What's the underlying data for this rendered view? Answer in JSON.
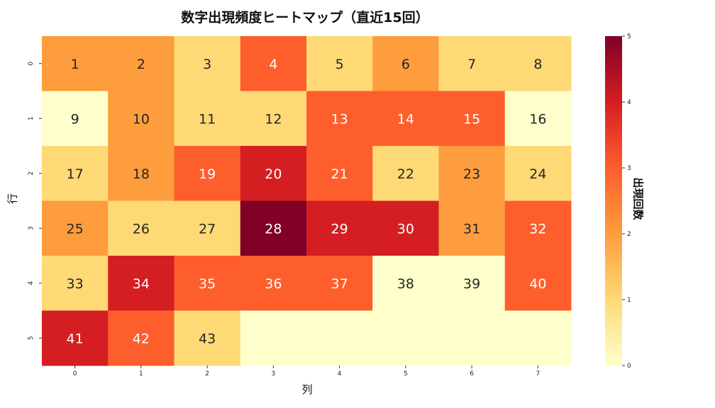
{
  "chart_data": {
    "type": "heatmap",
    "title": "数字出現頻度ヒートマップ（直近15回）",
    "xlabel": "列",
    "ylabel": "行",
    "colorbar_label": "出現回数",
    "x_categories": [
      "0",
      "1",
      "2",
      "3",
      "4",
      "5",
      "6",
      "7"
    ],
    "y_categories": [
      "0",
      "1",
      "2",
      "3",
      "4",
      "5"
    ],
    "values": [
      [
        2,
        2,
        1,
        3,
        1,
        2,
        1,
        1
      ],
      [
        0,
        2,
        1,
        1,
        3,
        3,
        3,
        0
      ],
      [
        1,
        2,
        3,
        4,
        3,
        1,
        2,
        1
      ],
      [
        2,
        1,
        1,
        5,
        4,
        4,
        2,
        3
      ],
      [
        1,
        4,
        3,
        3,
        3,
        0,
        0,
        3
      ],
      [
        4,
        3,
        1,
        0,
        0,
        0,
        0,
        0
      ]
    ],
    "annotations": [
      [
        "1",
        "2",
        "3",
        "4",
        "5",
        "6",
        "7",
        "8"
      ],
      [
        "9",
        "10",
        "11",
        "12",
        "13",
        "14",
        "15",
        "16"
      ],
      [
        "17",
        "18",
        "19",
        "20",
        "21",
        "22",
        "23",
        "24"
      ],
      [
        "25",
        "26",
        "27",
        "28",
        "29",
        "30",
        "31",
        "32"
      ],
      [
        "33",
        "34",
        "35",
        "36",
        "37",
        "38",
        "39",
        "40"
      ],
      [
        "41",
        "42",
        "43",
        "",
        "",
        "",
        "",
        ""
      ]
    ],
    "colorscale": [
      "#ffffcc",
      "#fed976",
      "#fd9d3d",
      "#fd5e2c",
      "#d41e22",
      "#800026"
    ],
    "vmin": 0,
    "vmax": 5,
    "colorbar_ticks": [
      "0",
      "1",
      "2",
      "3",
      "4",
      "5"
    ]
  }
}
